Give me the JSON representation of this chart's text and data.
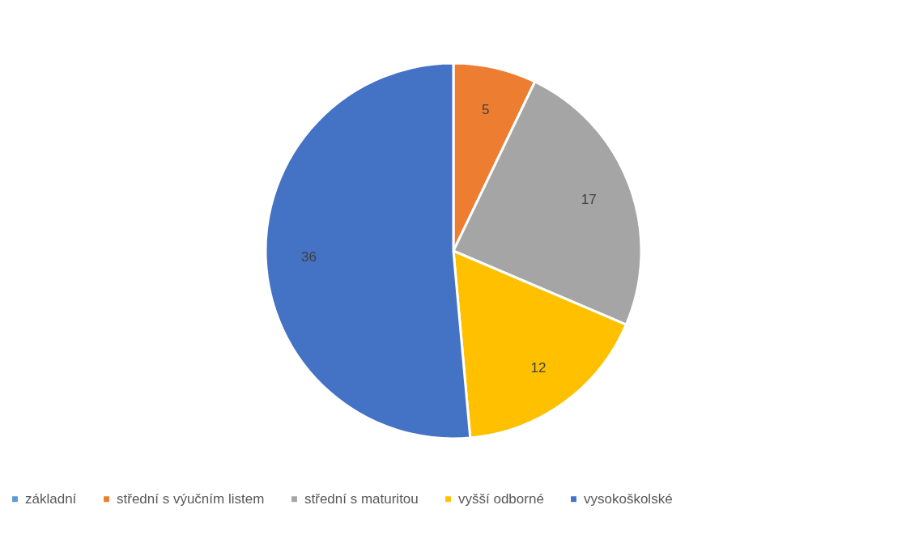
{
  "chart_data": {
    "type": "pie",
    "categories": [
      "základní",
      "střední s výučním listem",
      "střední s maturitou",
      "vyšší odborné",
      "vysokoškolské"
    ],
    "values": [
      0,
      5,
      17,
      12,
      36
    ],
    "colors": [
      "#5b9bd5",
      "#ed7d31",
      "#a5a5a5",
      "#ffc000",
      "#4472c4"
    ],
    "value_labels": [
      null,
      "5",
      "17",
      "12",
      "36"
    ],
    "legend": "bottom"
  }
}
